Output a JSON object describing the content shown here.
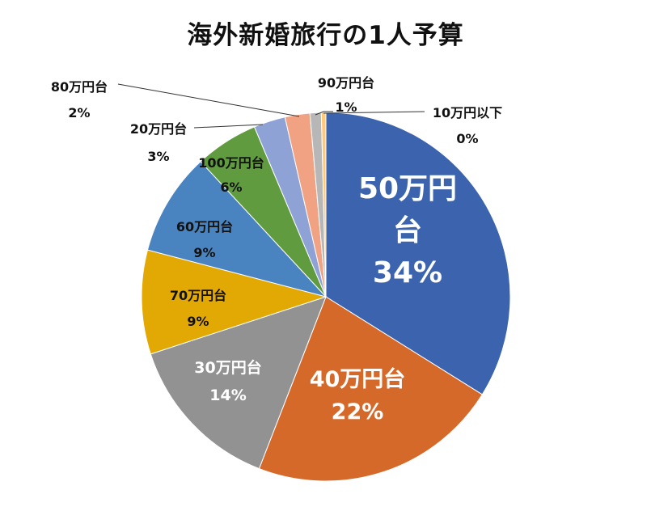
{
  "chart_data": {
    "type": "pie",
    "title": "海外新婚旅行の1人予算",
    "start_angle_deg": 0,
    "direction": "clockwise",
    "categories": [
      "50万円台",
      "40万円台",
      "30万円台",
      "70万円台",
      "60万円台",
      "100万円台",
      "20万円台",
      "80万円台",
      "90万円台",
      "10万円以下"
    ],
    "values": [
      34,
      22,
      14,
      9,
      9,
      6,
      3,
      2,
      1,
      0
    ],
    "value_unit": "%",
    "estimated_slice_values": [
      34.2,
      22.2,
      14.2,
      9.2,
      9.1,
      5.6,
      2.8,
      2.2,
      1.0,
      0.4
    ],
    "estimated_slice_values_note": "Approximate shares estimated from slice geometry in the image; not printed on the chart. Displayed labels are in values.",
    "labels": [
      "50万円\n台",
      "40万円台",
      "30万円台",
      "70万円台",
      "60万円台",
      "100万円台",
      "20万円台",
      "80万円台",
      "90万円台",
      "10万円以下"
    ],
    "percent_labels": [
      "34%",
      "22%",
      "14%",
      "9%",
      "9%",
      "6%",
      "3%",
      "2%",
      "1%",
      "0%"
    ],
    "colors": [
      "#3C64AE",
      "#D5692A",
      "#929292",
      "#E2A804",
      "#4A84C0",
      "#619B3F",
      "#8EA2D6",
      "#F0A283",
      "#B7B7B7",
      "#FFC978"
    ],
    "legend": null
  },
  "labels": {
    "s50": {
      "line1": "50万円",
      "line2": "台",
      "pct": "34%"
    },
    "s40": {
      "name": "40万円台",
      "pct": "22%"
    },
    "s30": {
      "name": "30万円台",
      "pct": "14%"
    },
    "s70": {
      "name": "70万円台",
      "pct": "9%"
    },
    "s60": {
      "name": "60万円台",
      "pct": "9%"
    },
    "s100": {
      "name": "100万円台",
      "pct": "6%"
    },
    "s20": {
      "name": "20万円台",
      "pct": "3%"
    },
    "s80": {
      "name": "80万円台",
      "pct": "2%"
    },
    "s90": {
      "name": "90万円台",
      "pct": "1%"
    },
    "s10": {
      "name": "10万円以下",
      "pct": "0%"
    }
  }
}
